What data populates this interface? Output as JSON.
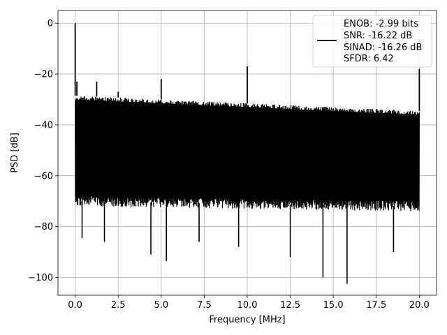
{
  "chart_data": {
    "type": "line",
    "xlabel": "Frequency [MHz]",
    "ylabel": "PSD [dB]",
    "xlim": [
      -1.0,
      21.0
    ],
    "ylim": [
      -107.0,
      5.0
    ],
    "xticks": [
      0.0,
      2.5,
      5.0,
      7.5,
      10.0,
      12.5,
      15.0,
      17.5,
      20.0
    ],
    "xtick_labels": [
      "0.0",
      "2.5",
      "5.0",
      "7.5",
      "10.0",
      "12.5",
      "15.0",
      "17.5",
      "20.0"
    ],
    "yticks": [
      0,
      -20,
      -40,
      -60,
      -80,
      -100
    ],
    "ytick_labels": [
      "0",
      "−20",
      "−40",
      "−60",
      "−80",
      "−100"
    ],
    "grid": true,
    "line_color": "#000000",
    "noise_band": {
      "top_start": -28.5,
      "top_end": -34.5,
      "bottom_start": -70.0,
      "bottom_end": -72.0
    },
    "series": [
      {
        "name": "",
        "color": "#000000",
        "peaks": [
          {
            "x": 0.0,
            "y": 0.0
          },
          {
            "x": 0.1,
            "y": -23.0
          },
          {
            "x": 1.25,
            "y": -23.0
          },
          {
            "x": 2.5,
            "y": -27.0
          },
          {
            "x": 5.0,
            "y": -22.0
          },
          {
            "x": 10.0,
            "y": -17.0
          },
          {
            "x": 20.0,
            "y": -18.0
          }
        ],
        "dips": [
          {
            "x": 0.4,
            "y": -84.5
          },
          {
            "x": 1.7,
            "y": -86.0
          },
          {
            "x": 4.4,
            "y": -91.0
          },
          {
            "x": 5.3,
            "y": -93.5
          },
          {
            "x": 7.2,
            "y": -86.0
          },
          {
            "x": 9.5,
            "y": -88.0
          },
          {
            "x": 12.5,
            "y": -92.0
          },
          {
            "x": 14.4,
            "y": -100.0
          },
          {
            "x": 15.8,
            "y": -102.5
          },
          {
            "x": 18.5,
            "y": -90.0
          }
        ]
      }
    ],
    "legend": {
      "position": "top-right",
      "entries": [
        "ENOB: -2.99 bits",
        "SNR: -16.22 dB",
        "SINAD: -16.26 dB",
        "SFDR: 6.42"
      ]
    }
  }
}
